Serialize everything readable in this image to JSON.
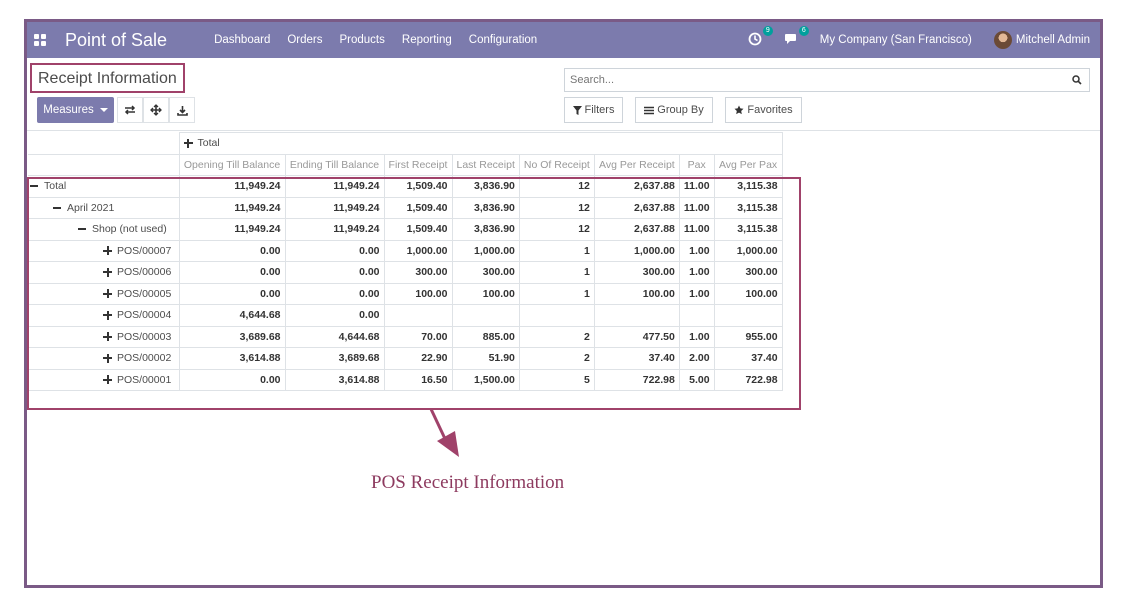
{
  "navbar": {
    "app_name": "Point of Sale",
    "menu": [
      "Dashboard",
      "Orders",
      "Products",
      "Reporting",
      "Configuration"
    ],
    "activity_badge": "9",
    "messages_badge": "6",
    "company": "My Company (San Francisco)",
    "user": "Mitchell Admin"
  },
  "control_panel": {
    "title": "Receipt Information",
    "search_placeholder": "Search...",
    "measures_label": "Measures",
    "filters_label": "Filters",
    "group_by_label": "Group By",
    "favorites_label": "Favorites"
  },
  "pivot": {
    "col_group": "Total",
    "measures": [
      "Opening Till Balance",
      "Ending Till Balance",
      "First Receipt",
      "Last Receipt",
      "No Of Receipt",
      "Avg Per Receipt",
      "Pax",
      "Avg Per Pax"
    ],
    "rows": [
      {
        "label": "Total",
        "level": 0,
        "icon": "minus",
        "values": [
          "11,949.24",
          "11,949.24",
          "1,509.40",
          "3,836.90",
          "12",
          "2,637.88",
          "11.00",
          "3,115.38"
        ]
      },
      {
        "label": "April 2021",
        "level": 1,
        "icon": "minus",
        "values": [
          "11,949.24",
          "11,949.24",
          "1,509.40",
          "3,836.90",
          "12",
          "2,637.88",
          "11.00",
          "3,115.38"
        ]
      },
      {
        "label": "Shop (not used)",
        "level": 2,
        "icon": "minus",
        "values": [
          "11,949.24",
          "11,949.24",
          "1,509.40",
          "3,836.90",
          "12",
          "2,637.88",
          "11.00",
          "3,115.38"
        ]
      },
      {
        "label": "POS/00007",
        "level": 3,
        "icon": "plus",
        "values": [
          "0.00",
          "0.00",
          "1,000.00",
          "1,000.00",
          "1",
          "1,000.00",
          "1.00",
          "1,000.00"
        ]
      },
      {
        "label": "POS/00006",
        "level": 3,
        "icon": "plus",
        "values": [
          "0.00",
          "0.00",
          "300.00",
          "300.00",
          "1",
          "300.00",
          "1.00",
          "300.00"
        ]
      },
      {
        "label": "POS/00005",
        "level": 3,
        "icon": "plus",
        "values": [
          "0.00",
          "0.00",
          "100.00",
          "100.00",
          "1",
          "100.00",
          "1.00",
          "100.00"
        ]
      },
      {
        "label": "POS/00004",
        "level": 3,
        "icon": "plus",
        "values": [
          "4,644.68",
          "0.00",
          "",
          "",
          "",
          "",
          "",
          ""
        ]
      },
      {
        "label": "POS/00003",
        "level": 3,
        "icon": "plus",
        "values": [
          "3,689.68",
          "4,644.68",
          "70.00",
          "885.00",
          "2",
          "477.50",
          "1.00",
          "955.00"
        ]
      },
      {
        "label": "POS/00002",
        "level": 3,
        "icon": "plus",
        "values": [
          "3,614.88",
          "3,689.68",
          "22.90",
          "51.90",
          "2",
          "37.40",
          "2.00",
          "37.40"
        ]
      },
      {
        "label": "POS/00001",
        "level": 3,
        "icon": "plus",
        "values": [
          "0.00",
          "3,614.88",
          "16.50",
          "1,500.00",
          "5",
          "722.98",
          "5.00",
          "722.98"
        ]
      }
    ]
  },
  "annotation": {
    "caption": "POS Receipt Information"
  },
  "colors": {
    "navbar": "#7c7bad",
    "annotation": "#a0426a",
    "frame": "#7a5a86"
  }
}
